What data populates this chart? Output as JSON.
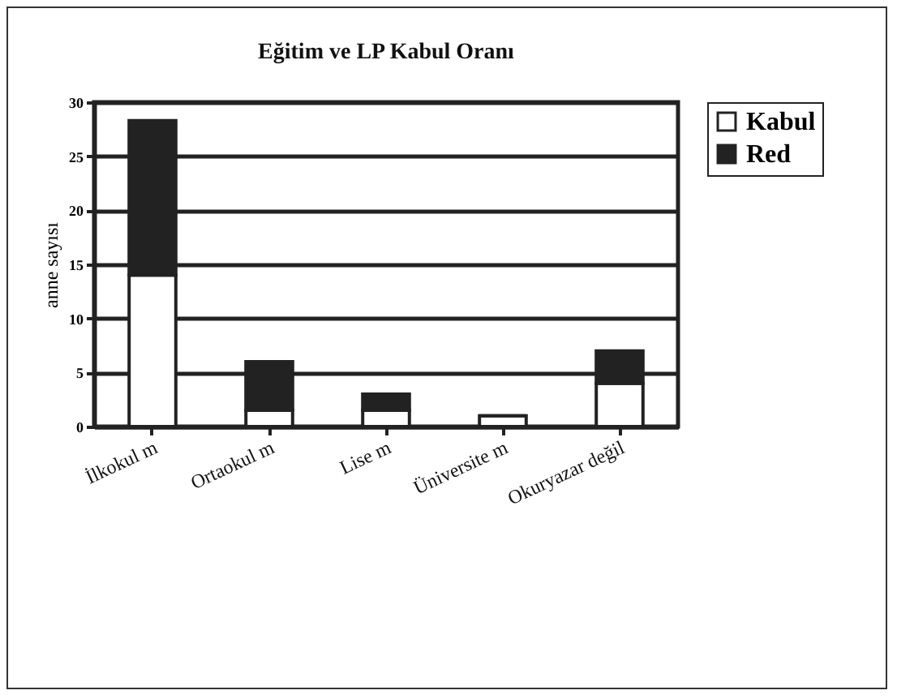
{
  "chart_data": {
    "type": "bar",
    "title": "Eğitim ve LP Kabul Oranı",
    "ylabel": "anne sayısı",
    "categories": [
      "İlkokul m",
      "Ortaokul m",
      "Lise m",
      "Üniversite m",
      "Okuryazar değil"
    ],
    "stacked": true,
    "series": [
      {
        "name": "Kabul",
        "color": "#ffffff",
        "values": [
          14,
          1.5,
          1.5,
          1,
          4
        ]
      },
      {
        "name": "Red",
        "color": "#222222",
        "values": [
          14.3,
          4.5,
          1.5,
          0,
          3
        ]
      }
    ],
    "ylim": [
      0,
      30
    ],
    "yticks": [
      0,
      5,
      10,
      15,
      20,
      25,
      30
    ],
    "grid": "y",
    "legend": "right"
  }
}
